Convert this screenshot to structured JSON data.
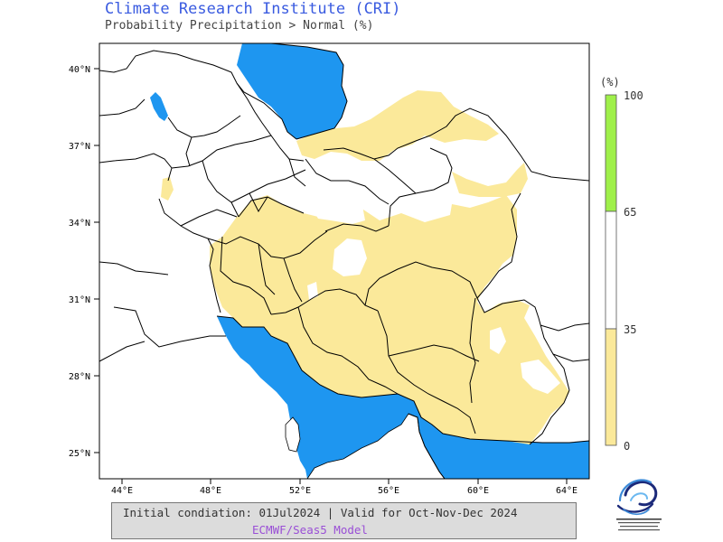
{
  "header": {
    "title": "Climate Research Institute (CRI)",
    "subtitle": "Probability Precipitation > Normal (%)"
  },
  "map": {
    "lat_ticks": [
      "40°N",
      "37°N",
      "34°N",
      "31°N",
      "28°N",
      "25°N"
    ],
    "lon_ticks": [
      "44°E",
      "48°E",
      "52°E",
      "56°E",
      "60°E",
      "64°E"
    ],
    "colors": {
      "water": "#1e96f0",
      "below_normal": "#fbe99a",
      "normal": "#ffffff",
      "above_normal": "#9ff04a",
      "border": "#000000"
    }
  },
  "colorbar": {
    "unit": "(%)",
    "labels": [
      "100",
      "65",
      "35",
      "0"
    ],
    "levels": [
      100,
      65,
      35,
      0
    ]
  },
  "footer": {
    "line1": "Initial condiation: 01Jul2024 | Valid for Oct-Nov-Dec 2024",
    "line2": "ECMWF/Seas5 Model"
  },
  "logo": {
    "icon": "cri-logo-icon"
  }
}
